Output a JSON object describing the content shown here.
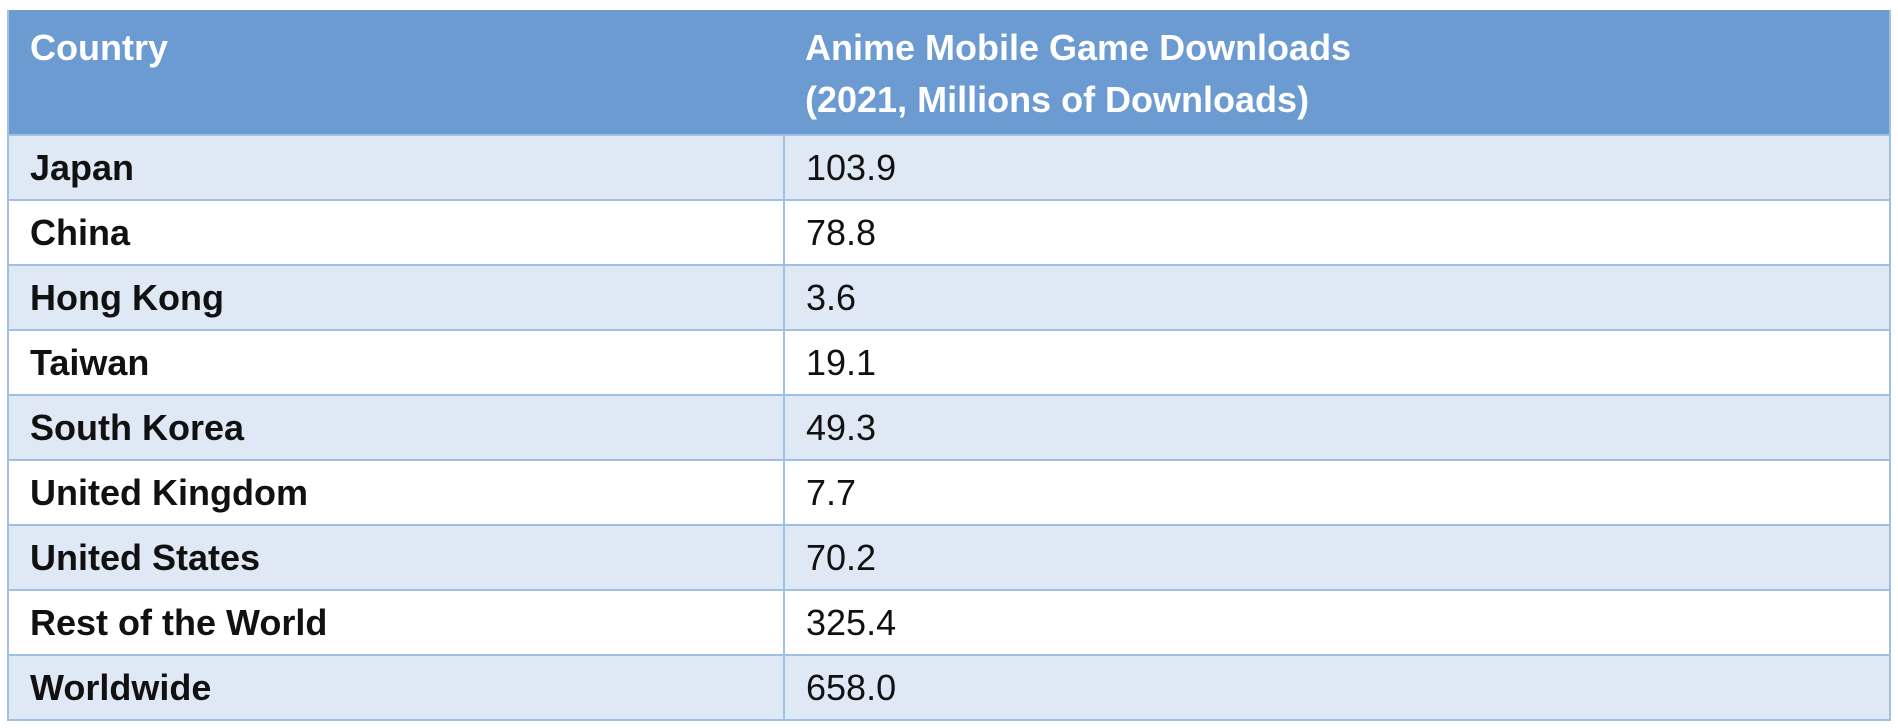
{
  "table": {
    "headers": {
      "country": "Country",
      "downloads_line1": "Anime Mobile Game Downloads",
      "downloads_line2": "(2021, Millions of Downloads)"
    },
    "rows": [
      {
        "country": "Japan",
        "value": "103.9"
      },
      {
        "country": "China",
        "value": "78.8"
      },
      {
        "country": "Hong Kong",
        "value": "3.6"
      },
      {
        "country": "Taiwan",
        "value": "19.1"
      },
      {
        "country": "South Korea",
        "value": "49.3"
      },
      {
        "country": "United Kingdom",
        "value": "7.7"
      },
      {
        "country": "United States",
        "value": "70.2"
      },
      {
        "country": "Rest of the World",
        "value": "325.4"
      },
      {
        "country": "Worldwide",
        "value": "658.0"
      }
    ]
  },
  "colors": {
    "header_bg": "#6b9bd1",
    "band_bg": "#dfe9f5",
    "border": "#9fbfe3"
  }
}
